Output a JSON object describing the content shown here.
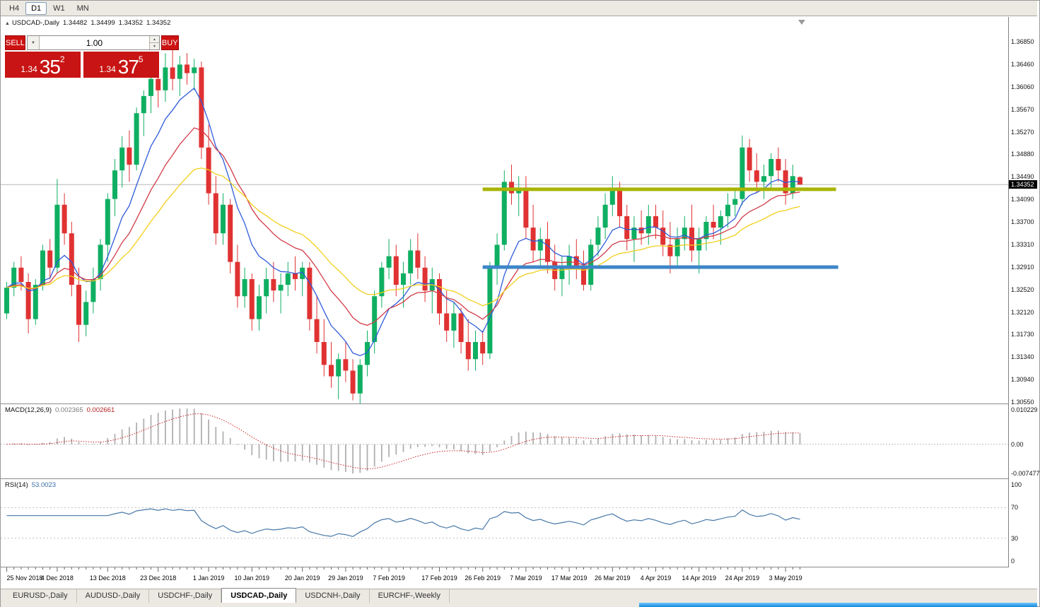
{
  "icons": {
    "symbol_marker": "▲",
    "dropdown_arrow": "▼",
    "spin_up": "▲",
    "spin_down": "▼"
  },
  "toolbar": {
    "timeframes": [
      {
        "label": "H4",
        "active": false
      },
      {
        "label": "D1",
        "active": true
      },
      {
        "label": "W1",
        "active": false
      },
      {
        "label": "MN",
        "active": false
      }
    ]
  },
  "chart_header": {
    "symbol": "USDCAD-,Daily",
    "open": "1.34482",
    "high": "1.34499",
    "low": "1.34352",
    "close": "1.34352"
  },
  "trade_panel": {
    "sell_label": "SELL",
    "buy_label": "BUY",
    "volume": "1.00",
    "sell_price": {
      "base": "1.34",
      "big": "35",
      "sup": "2"
    },
    "buy_price": {
      "base": "1.34",
      "big": "37",
      "sup": "5"
    }
  },
  "price_axis": {
    "labels": [
      "1.36850",
      "1.36460",
      "1.36060",
      "1.35670",
      "1.35270",
      "1.34880",
      "1.34490",
      "1.34090",
      "1.33700",
      "1.33310",
      "1.32910",
      "1.32520",
      "1.32120",
      "1.31730",
      "1.31340",
      "1.30940",
      "1.30550"
    ],
    "current": "1.34352"
  },
  "macd_panel": {
    "label": "MACD(12,26,9)",
    "main_value": "0.002365",
    "signal_value": "0.002661",
    "axis_top": "0.010229",
    "axis_zero": "0.00",
    "axis_bottom": "-0.007477",
    "params": {
      "fast": 12,
      "slow": 26,
      "signal": 9
    },
    "histogram_color": "#b0b0b0",
    "signal_color": "#cc2222"
  },
  "rsi_panel": {
    "label": "RSI(14)",
    "value": "53.0023",
    "period": 14,
    "levels": [
      70,
      30
    ],
    "axis": [
      "100",
      "70",
      "30",
      "0"
    ],
    "line_color": "#4878a8"
  },
  "date_axis": {
    "labels": [
      {
        "text": "25 Nov 2018",
        "i": 0
      },
      {
        "text": "4 Dec 2018",
        "i": 7
      },
      {
        "text": "13 Dec 2018",
        "i": 14
      },
      {
        "text": "23 Dec 2018",
        "i": 21
      },
      {
        "text": "1 Jan 2019",
        "i": 28
      },
      {
        "text": "10 Jan 2019",
        "i": 34
      },
      {
        "text": "20 Jan 2019",
        "i": 41
      },
      {
        "text": "29 Jan 2019",
        "i": 47
      },
      {
        "text": "7 Feb 2019",
        "i": 53
      },
      {
        "text": "17 Feb 2019",
        "i": 60
      },
      {
        "text": "26 Feb 2019",
        "i": 66
      },
      {
        "text": "7 Mar 2019",
        "i": 72
      },
      {
        "text": "17 Mar 2019",
        "i": 78
      },
      {
        "text": "26 Mar 2019",
        "i": 84
      },
      {
        "text": "4 Apr 2019",
        "i": 90
      },
      {
        "text": "14 Apr 2019",
        "i": 96
      },
      {
        "text": "24 Apr 2019",
        "i": 102
      },
      {
        "text": "3 May 2019",
        "i": 108
      }
    ]
  },
  "bottom_tabs": {
    "tabs": [
      {
        "label": "EURUSD-,Daily",
        "active": false
      },
      {
        "label": "AUDUSD-,Daily",
        "active": false
      },
      {
        "label": "USDCHF-,Daily",
        "active": false
      },
      {
        "label": "USDCAD-,Daily",
        "active": true
      },
      {
        "label": "USDCNH-,Daily",
        "active": false
      },
      {
        "label": "EURCHF-,Weekly",
        "active": false
      }
    ]
  },
  "chart_data": {
    "type": "candlestick",
    "symbol": "USDCAD",
    "timeframe": "Daily",
    "price_top": 1.3685,
    "price_bottom": 1.3055,
    "current_price": 1.34352,
    "bull_color": "#0faf62",
    "bear_color": "#e03232",
    "moving_averages": [
      {
        "type": "ema",
        "period": 8,
        "color": "#2e5bda"
      },
      {
        "type": "ema",
        "period": 16,
        "color": "#d23b48"
      },
      {
        "type": "ema",
        "period": 28,
        "color": "#f2cf1b"
      }
    ],
    "hlines": [
      {
        "name": "resistance",
        "price": 1.3427,
        "color": "#a8b400",
        "width": 5,
        "from_index": 66,
        "to_index": 115
      },
      {
        "name": "support",
        "price": 1.3291,
        "color": "#3d85c8",
        "width": 5,
        "from_index": 66,
        "to_index": 115.3
      }
    ],
    "candles": [
      [
        1.321,
        1.3265,
        1.32,
        1.3255
      ],
      [
        1.3255,
        1.33,
        1.324,
        1.329
      ],
      [
        1.329,
        1.331,
        1.325,
        1.3265
      ],
      [
        1.3265,
        1.328,
        1.3175,
        1.32
      ],
      [
        1.32,
        1.327,
        1.319,
        1.326
      ],
      [
        1.326,
        1.333,
        1.325,
        1.332
      ],
      [
        1.332,
        1.334,
        1.327,
        1.329
      ],
      [
        1.329,
        1.3445,
        1.328,
        1.34
      ],
      [
        1.34,
        1.342,
        1.333,
        1.335
      ],
      [
        1.335,
        1.337,
        1.324,
        1.326
      ],
      [
        1.326,
        1.329,
        1.316,
        1.319
      ],
      [
        1.319,
        1.325,
        1.317,
        1.323
      ],
      [
        1.323,
        1.329,
        1.321,
        1.327
      ],
      [
        1.327,
        1.334,
        1.325,
        1.333
      ],
      [
        1.333,
        1.342,
        1.33,
        1.341
      ],
      [
        1.341,
        1.348,
        1.338,
        1.346
      ],
      [
        1.346,
        1.352,
        1.343,
        1.35
      ],
      [
        1.35,
        1.353,
        1.344,
        1.347
      ],
      [
        1.347,
        1.357,
        1.346,
        1.356
      ],
      [
        1.356,
        1.36,
        1.352,
        1.359
      ],
      [
        1.359,
        1.364,
        1.356,
        1.362
      ],
      [
        1.362,
        1.365,
        1.357,
        1.36
      ],
      [
        1.36,
        1.3665,
        1.358,
        1.364
      ],
      [
        1.364,
        1.368,
        1.36,
        1.362
      ],
      [
        1.362,
        1.366,
        1.359,
        1.3645
      ],
      [
        1.3645,
        1.3665,
        1.361,
        1.363
      ],
      [
        1.363,
        1.3655,
        1.36,
        1.364
      ],
      [
        1.364,
        1.365,
        1.348,
        1.35
      ],
      [
        1.35,
        1.354,
        1.34,
        1.342
      ],
      [
        1.342,
        1.345,
        1.333,
        1.335
      ],
      [
        1.335,
        1.342,
        1.333,
        1.34
      ],
      [
        1.34,
        1.341,
        1.328,
        1.33
      ],
      [
        1.33,
        1.333,
        1.322,
        1.324
      ],
      [
        1.324,
        1.329,
        1.322,
        1.327
      ],
      [
        1.327,
        1.328,
        1.318,
        1.32
      ],
      [
        1.32,
        1.326,
        1.318,
        1.324
      ],
      [
        1.324,
        1.329,
        1.321,
        1.327
      ],
      [
        1.327,
        1.33,
        1.323,
        1.325
      ],
      [
        1.325,
        1.328,
        1.321,
        1.326
      ],
      [
        1.326,
        1.33,
        1.324,
        1.328
      ],
      [
        1.328,
        1.331,
        1.325,
        1.327
      ],
      [
        1.327,
        1.33,
        1.324,
        1.329
      ],
      [
        1.329,
        1.33,
        1.318,
        1.32
      ],
      [
        1.32,
        1.324,
        1.314,
        1.316
      ],
      [
        1.316,
        1.32,
        1.31,
        1.312
      ],
      [
        1.312,
        1.316,
        1.308,
        1.31
      ],
      [
        1.31,
        1.314,
        1.306,
        1.313
      ],
      [
        1.313,
        1.316,
        1.309,
        1.311
      ],
      [
        1.311,
        1.313,
        1.3058,
        1.307
      ],
      [
        1.307,
        1.313,
        1.305,
        1.312
      ],
      [
        1.312,
        1.318,
        1.31,
        1.316
      ],
      [
        1.316,
        1.325,
        1.314,
        1.324
      ],
      [
        1.324,
        1.33,
        1.322,
        1.329
      ],
      [
        1.329,
        1.334,
        1.327,
        1.331
      ],
      [
        1.331,
        1.333,
        1.324,
        1.326
      ],
      [
        1.326,
        1.33,
        1.322,
        1.328
      ],
      [
        1.328,
        1.334,
        1.326,
        1.332
      ],
      [
        1.332,
        1.335,
        1.327,
        1.329
      ],
      [
        1.329,
        1.331,
        1.323,
        1.325
      ],
      [
        1.325,
        1.329,
        1.321,
        1.327
      ],
      [
        1.327,
        1.328,
        1.319,
        1.321
      ],
      [
        1.321,
        1.325,
        1.316,
        1.318
      ],
      [
        1.318,
        1.323,
        1.315,
        1.321
      ],
      [
        1.321,
        1.322,
        1.314,
        1.316
      ],
      [
        1.316,
        1.32,
        1.311,
        1.313
      ],
      [
        1.313,
        1.318,
        1.311,
        1.316
      ],
      [
        1.316,
        1.318,
        1.312,
        1.314
      ],
      [
        1.314,
        1.33,
        1.313,
        1.329
      ],
      [
        1.329,
        1.335,
        1.326,
        1.333
      ],
      [
        1.333,
        1.346,
        1.332,
        1.344
      ],
      [
        1.344,
        1.347,
        1.34,
        1.342
      ],
      [
        1.342,
        1.345,
        1.338,
        1.343
      ],
      [
        1.343,
        1.345,
        1.334,
        1.336
      ],
      [
        1.336,
        1.34,
        1.33,
        1.332
      ],
      [
        1.332,
        1.336,
        1.329,
        1.334
      ],
      [
        1.334,
        1.337,
        1.328,
        1.33
      ],
      [
        1.33,
        1.333,
        1.325,
        1.327
      ],
      [
        1.327,
        1.331,
        1.324,
        1.329
      ],
      [
        1.329,
        1.333,
        1.326,
        1.331
      ],
      [
        1.331,
        1.334,
        1.327,
        1.329
      ],
      [
        1.329,
        1.332,
        1.325,
        1.326
      ],
      [
        1.326,
        1.334,
        1.325,
        1.333
      ],
      [
        1.333,
        1.338,
        1.331,
        1.336
      ],
      [
        1.336,
        1.342,
        1.334,
        1.34
      ],
      [
        1.34,
        1.345,
        1.338,
        1.343
      ],
      [
        1.343,
        1.344,
        1.336,
        1.338
      ],
      [
        1.338,
        1.34,
        1.332,
        1.334
      ],
      [
        1.334,
        1.338,
        1.33,
        1.336
      ],
      [
        1.336,
        1.339,
        1.333,
        1.335
      ],
      [
        1.335,
        1.34,
        1.333,
        1.338
      ],
      [
        1.338,
        1.34,
        1.334,
        1.336
      ],
      [
        1.336,
        1.339,
        1.331,
        1.333
      ],
      [
        1.333,
        1.337,
        1.328,
        1.331
      ],
      [
        1.331,
        1.336,
        1.329,
        1.334
      ],
      [
        1.334,
        1.338,
        1.332,
        1.336
      ],
      [
        1.336,
        1.34,
        1.33,
        1.332
      ],
      [
        1.332,
        1.336,
        1.328,
        1.334
      ],
      [
        1.334,
        1.338,
        1.332,
        1.337
      ],
      [
        1.337,
        1.34,
        1.334,
        1.336
      ],
      [
        1.336,
        1.339,
        1.333,
        1.338
      ],
      [
        1.338,
        1.342,
        1.336,
        1.34
      ],
      [
        1.34,
        1.343,
        1.338,
        1.341
      ],
      [
        1.341,
        1.3521,
        1.34,
        1.35
      ],
      [
        1.35,
        1.3515,
        1.344,
        1.346
      ],
      [
        1.346,
        1.349,
        1.342,
        1.344
      ],
      [
        1.344,
        1.347,
        1.341,
        1.345
      ],
      [
        1.345,
        1.349,
        1.343,
        1.348
      ],
      [
        1.348,
        1.35,
        1.344,
        1.346
      ],
      [
        1.346,
        1.348,
        1.34,
        1.342
      ],
      [
        1.342,
        1.347,
        1.341,
        1.345
      ],
      [
        1.34482,
        1.34499,
        1.34352,
        1.34352
      ]
    ]
  }
}
